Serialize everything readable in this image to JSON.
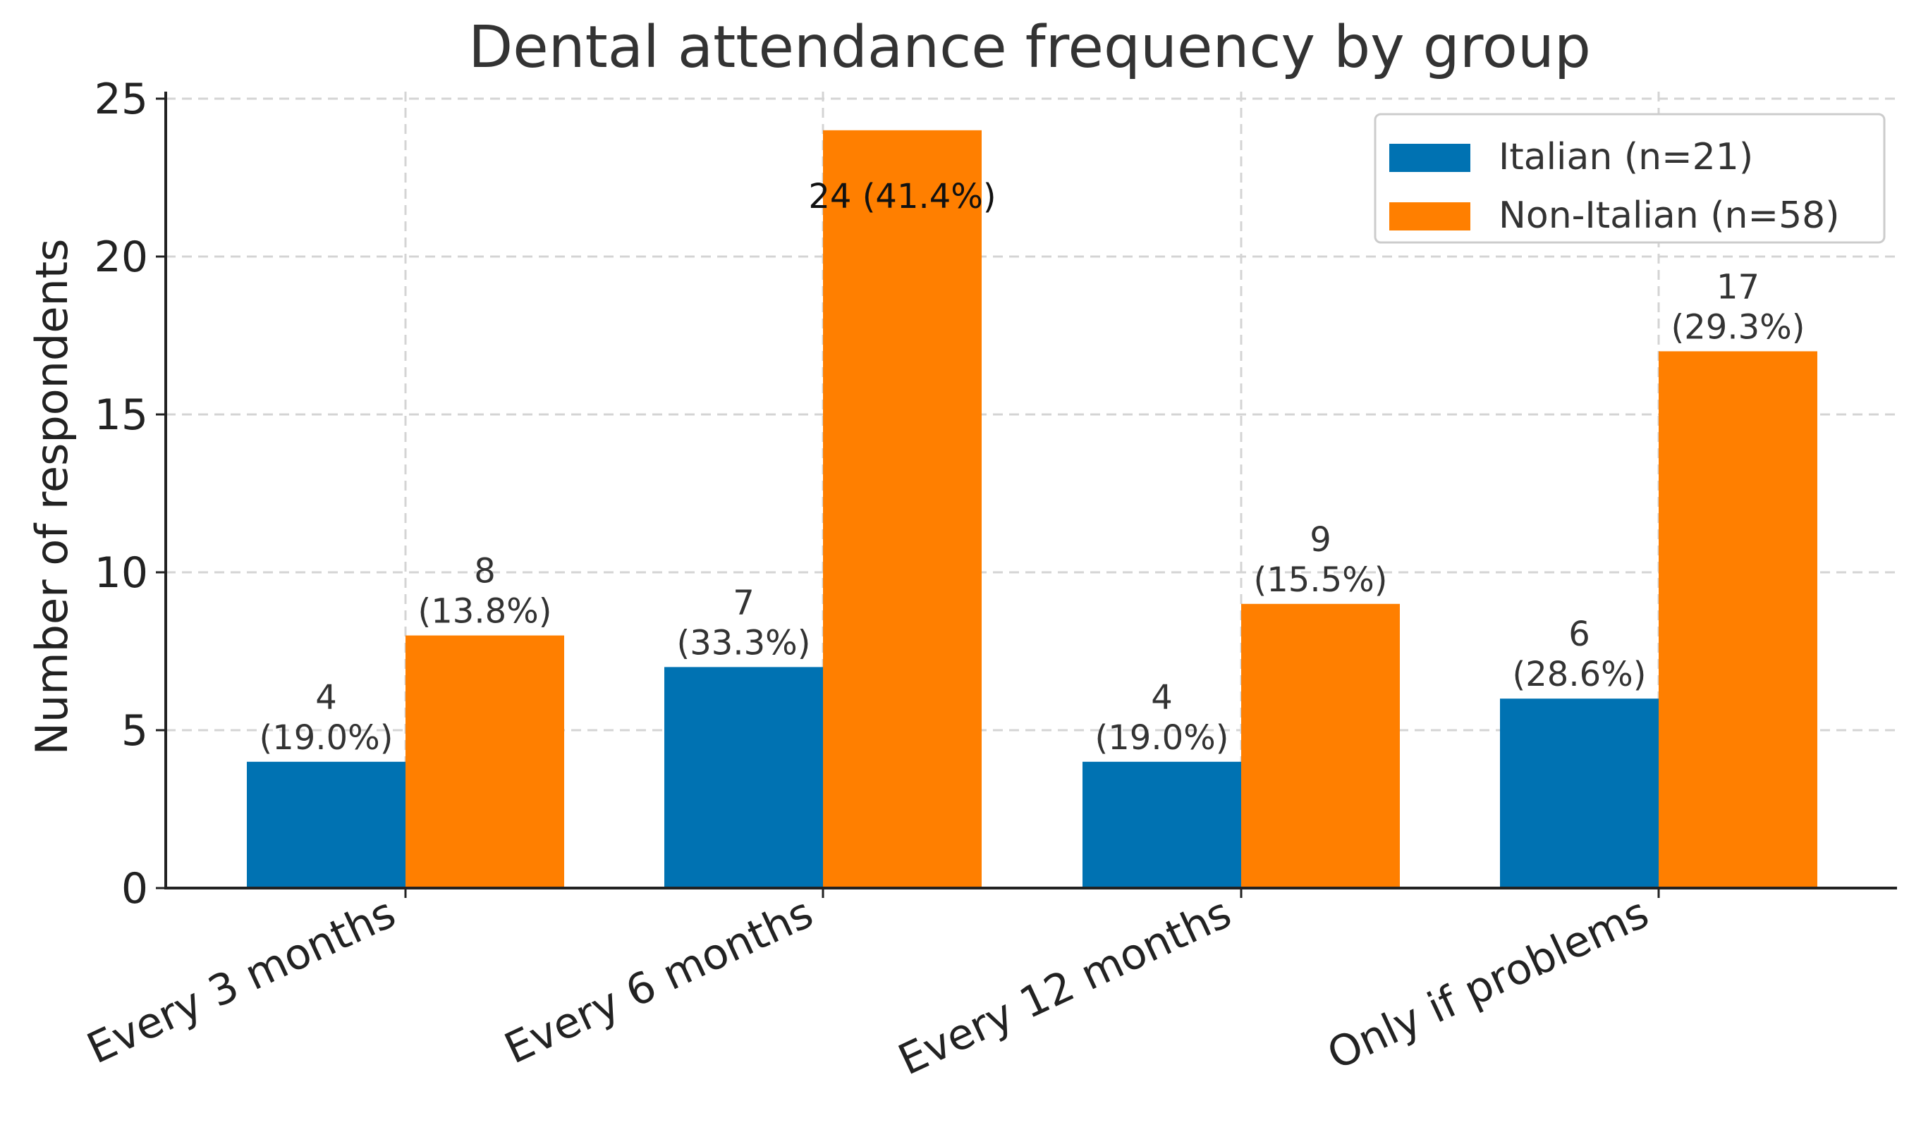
{
  "chart_data": {
    "type": "bar",
    "title": "Dental attendance frequency by group",
    "xlabel": "",
    "ylabel": "Number of respondents",
    "ylim": [
      0,
      25
    ],
    "yticks": [
      0,
      5,
      10,
      15,
      20,
      25
    ],
    "grid": true,
    "legend_position": "top-right",
    "categories": [
      "Every 3 months",
      "Every 6 months",
      "Every 12 months",
      "Only if problems"
    ],
    "series": [
      {
        "name": "Italian (n=21)",
        "color": "#0072b2",
        "values": [
          4,
          7,
          4,
          6
        ],
        "labels": [
          "4\n(19.0%)",
          "7\n(33.3%)",
          "4\n(19.0%)",
          "6\n(28.6%)"
        ]
      },
      {
        "name": "Non-Italian (n=58)",
        "color": "#ff7f00",
        "values": [
          8,
          24,
          9,
          17
        ],
        "labels": [
          "8\n(13.8%)",
          "24 (41.4%)",
          "9\n(15.5%)",
          "17\n(29.3%)"
        ]
      }
    ]
  }
}
